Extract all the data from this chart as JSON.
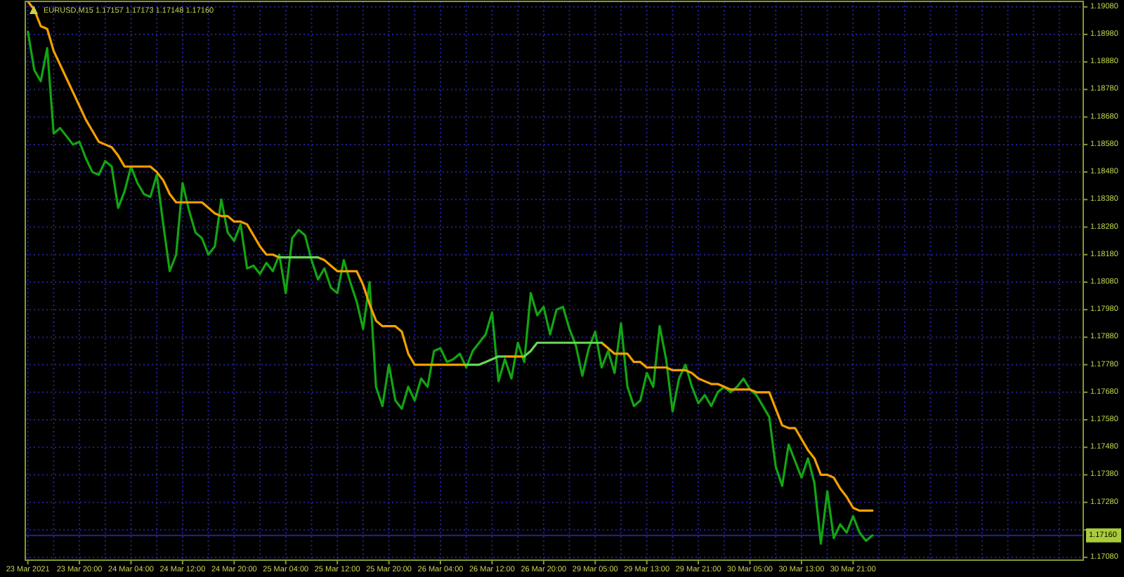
{
  "chart_data": {
    "type": "line",
    "title": "EURUSD,M15 1.17157 1.17173 1.17148 1.17160",
    "categories": [
      "23 Mar 2021",
      null,
      null,
      null,
      null,
      null,
      null,
      null,
      "23 Mar 20:00",
      null,
      null,
      null,
      null,
      null,
      null,
      null,
      "24 Mar 04:00",
      null,
      null,
      null,
      null,
      null,
      null,
      null,
      "24 Mar 12:00",
      null,
      null,
      null,
      null,
      null,
      null,
      null,
      "24 Mar 20:00",
      null,
      null,
      null,
      null,
      null,
      null,
      null,
      "25 Mar 04:00",
      null,
      null,
      null,
      null,
      null,
      null,
      null,
      "25 Mar 12:00",
      null,
      null,
      null,
      null,
      null,
      null,
      null,
      "25 Mar 20:00",
      null,
      null,
      null,
      null,
      null,
      null,
      null,
      "26 Mar 04:00",
      null,
      null,
      null,
      null,
      null,
      null,
      null,
      "26 Mar 12:00",
      null,
      null,
      null,
      null,
      null,
      null,
      null,
      "26 Mar 20:00",
      null,
      null,
      null,
      null,
      null,
      null,
      null,
      "29 Mar 05:00",
      null,
      null,
      null,
      null,
      null,
      null,
      null,
      "29 Mar 13:00",
      null,
      null,
      null,
      null,
      null,
      null,
      null,
      "29 Mar 21:00",
      null,
      null,
      null,
      null,
      null,
      null,
      null,
      "30 Mar 05:00",
      null,
      null,
      null,
      null,
      null,
      null,
      null,
      "30 Mar 13:00",
      null,
      null,
      null,
      null,
      null,
      null,
      null,
      "30 Mar 21:00",
      null,
      null,
      null,
      null,
      null,
      null,
      null,
      null,
      null,
      null,
      null,
      null,
      null,
      null,
      null,
      null,
      null,
      null,
      null,
      null,
      null,
      null,
      null,
      null,
      null,
      null,
      null,
      null,
      null,
      null,
      null,
      null,
      null,
      null,
      null
    ],
    "ylim": [
      1.1707,
      1.191
    ],
    "yticks": [
      {
        "value": 1.1708,
        "label": "1.17080"
      },
      {
        "value": 1.1718,
        "label": null
      },
      {
        "value": 1.1728,
        "label": "1.17280"
      },
      {
        "value": 1.1738,
        "label": "1.17380"
      },
      {
        "value": 1.1748,
        "label": "1.17480"
      },
      {
        "value": 1.1758,
        "label": "1.17580"
      },
      {
        "value": 1.1768,
        "label": "1.17680"
      },
      {
        "value": 1.1778,
        "label": "1.17780"
      },
      {
        "value": 1.1788,
        "label": "1.17880"
      },
      {
        "value": 1.1798,
        "label": "1.17980"
      },
      {
        "value": 1.1808,
        "label": "1.18080"
      },
      {
        "value": 1.1818,
        "label": "1.18180"
      },
      {
        "value": 1.1828,
        "label": "1.18280"
      },
      {
        "value": 1.1838,
        "label": "1.18380"
      },
      {
        "value": 1.1848,
        "label": "1.18480"
      },
      {
        "value": 1.1858,
        "label": "1.18580"
      },
      {
        "value": 1.1868,
        "label": "1.18680"
      },
      {
        "value": 1.1878,
        "label": "1.18780"
      },
      {
        "value": 1.1888,
        "label": "1.18880"
      },
      {
        "value": 1.1898,
        "label": "1.18980"
      },
      {
        "value": 1.1908,
        "label": "1.19080"
      }
    ],
    "grid": true,
    "ref_lines": [
      {
        "axis": "y",
        "value": 1.1716,
        "label": "1.17160",
        "color": "#24248f"
      }
    ],
    "series": [
      {
        "color": "#12a512",
        "values": [
          1.1899,
          1.1885,
          1.1881,
          1.1893,
          1.1862,
          1.1864,
          1.1861,
          1.1858,
          1.1859,
          1.1853,
          1.1848,
          1.1847,
          1.1852,
          1.185,
          1.1835,
          1.1841,
          1.185,
          1.1844,
          1.184,
          1.1839,
          1.1847,
          1.1829,
          1.1812,
          1.1818,
          1.1844,
          1.1834,
          1.1826,
          1.1824,
          1.1818,
          1.1821,
          1.1838,
          1.1826,
          1.1823,
          1.1829,
          1.1813,
          1.1814,
          1.1811,
          1.1815,
          1.1812,
          1.1818,
          1.1804,
          1.1824,
          1.1827,
          1.1825,
          1.1816,
          1.1809,
          1.1813,
          1.1806,
          1.1804,
          1.1816,
          1.1808,
          1.1801,
          1.1791,
          1.1808,
          1.177,
          1.1763,
          1.1778,
          1.1765,
          1.1762,
          1.177,
          1.1765,
          1.1773,
          1.177,
          1.1783,
          1.1784,
          1.1779,
          1.178,
          1.1782,
          1.1777,
          1.1783,
          1.1786,
          1.1789,
          1.1797,
          1.1772,
          1.178,
          1.1773,
          1.1786,
          1.1779,
          1.1804,
          1.1796,
          1.1799,
          1.1789,
          1.1798,
          1.1799,
          1.1791,
          1.1785,
          1.1774,
          1.1784,
          1.179,
          1.1777,
          1.1783,
          1.1775,
          1.1793,
          1.177,
          1.1763,
          1.1765,
          1.1775,
          1.177,
          1.1792,
          1.178,
          1.1761,
          1.1773,
          1.1778,
          1.177,
          1.1764,
          1.1767,
          1.1763,
          1.1768,
          1.177,
          1.1768,
          1.177,
          1.1773,
          1.1769,
          1.1767,
          1.1763,
          1.1759,
          1.1741,
          1.1734,
          1.1749,
          1.1743,
          1.1737,
          1.1744,
          1.1735,
          1.1713,
          1.1732,
          1.1715,
          1.172,
          1.1717,
          1.1723,
          1.1717,
          1.1714,
          1.1716,
          null,
          null,
          null,
          null,
          null,
          null,
          null,
          null,
          null,
          null,
          null,
          null,
          null,
          null,
          null,
          null,
          null,
          null,
          null,
          null,
          null,
          null,
          null,
          null,
          null,
          null,
          null,
          null,
          null,
          null,
          null,
          null
        ]
      },
      {
        "color": "#f5a000",
        "values": [
          1.191,
          1.1907,
          1.1901,
          1.19,
          1.1892,
          1.1887,
          1.1882,
          1.1877,
          1.1872,
          1.1867,
          1.1863,
          1.1859,
          1.1858,
          1.1857,
          1.1854,
          1.185,
          1.185,
          1.185,
          1.185,
          1.185,
          1.1848,
          1.1845,
          1.184,
          1.1837,
          1.1837,
          1.1837,
          1.1837,
          1.1837,
          1.1835,
          1.1833,
          1.1832,
          1.1832,
          1.183,
          1.183,
          1.1829,
          1.1825,
          1.1821,
          1.1818,
          1.1818,
          1.1817,
          null,
          null,
          null,
          null,
          null,
          1.1817,
          1.1816,
          1.1814,
          1.1812,
          1.1812,
          1.1812,
          1.1812,
          1.1807,
          1.18,
          1.1794,
          1.1792,
          1.1792,
          1.1792,
          1.179,
          1.1782,
          1.1778,
          1.1778,
          1.1778,
          1.1778,
          1.1778,
          1.1778,
          1.1778,
          1.1778,
          1.1778,
          null,
          null,
          null,
          null,
          null,
          1.1781,
          1.1781,
          1.1781,
          1.1781,
          null,
          null,
          null,
          null,
          null,
          null,
          null,
          null,
          null,
          null,
          null,
          1.1786,
          1.1784,
          1.1782,
          1.1782,
          1.1782,
          1.1779,
          1.1779,
          1.1777,
          1.1777,
          1.1777,
          1.1777,
          1.1776,
          1.1776,
          1.1776,
          1.1775,
          1.1773,
          1.1772,
          1.1771,
          1.1771,
          1.177,
          1.1769,
          1.1769,
          1.1769,
          1.1769,
          1.1768,
          1.1768,
          1.1768,
          1.1762,
          1.1756,
          1.1755,
          1.1755,
          1.1751,
          1.1747,
          1.1744,
          1.1738,
          1.1738,
          1.1737,
          1.1733,
          1.173,
          1.1726,
          1.1725,
          1.1725,
          1.1725,
          null,
          null,
          null,
          null,
          null,
          null,
          null,
          null,
          null,
          null,
          null,
          null,
          null,
          null,
          null,
          null,
          null,
          null,
          null,
          null,
          null,
          null,
          null,
          null,
          null,
          null,
          null,
          null,
          null,
          null,
          null,
          null
        ]
      },
      {
        "color": "#66d855",
        "values": [
          null,
          null,
          null,
          null,
          null,
          null,
          null,
          null,
          null,
          null,
          null,
          null,
          null,
          null,
          null,
          null,
          null,
          null,
          null,
          null,
          null,
          null,
          null,
          null,
          null,
          null,
          null,
          null,
          null,
          null,
          null,
          null,
          null,
          null,
          null,
          null,
          null,
          null,
          null,
          1.1817,
          1.1817,
          1.1817,
          1.1817,
          1.1817,
          1.1817,
          1.1817,
          null,
          null,
          null,
          null,
          null,
          null,
          null,
          null,
          null,
          null,
          null,
          null,
          null,
          null,
          null,
          null,
          null,
          null,
          null,
          null,
          null,
          null,
          1.1778,
          1.1778,
          1.1778,
          1.1779,
          1.178,
          1.1781,
          1.1781,
          null,
          null,
          1.1781,
          1.1783,
          1.1786,
          1.1786,
          1.1786,
          1.1786,
          1.1786,
          1.1786,
          1.1786,
          1.1786,
          1.1786,
          1.1786,
          1.1786,
          null,
          null,
          null,
          null,
          null,
          null,
          null,
          null,
          null,
          null,
          null,
          null,
          null,
          null,
          null,
          null,
          null,
          null,
          null,
          null,
          null,
          null,
          null,
          null,
          null,
          null,
          null,
          null,
          null,
          null,
          null,
          null,
          null,
          null,
          null,
          null,
          null,
          null,
          null,
          null,
          null,
          null,
          null,
          null,
          null,
          null,
          null,
          null,
          null,
          null,
          null,
          null,
          null,
          null,
          null,
          null,
          null,
          null,
          null,
          null,
          null,
          null,
          null,
          null,
          null,
          null,
          null,
          null,
          null,
          null,
          null,
          null,
          null,
          null
        ]
      }
    ]
  }
}
